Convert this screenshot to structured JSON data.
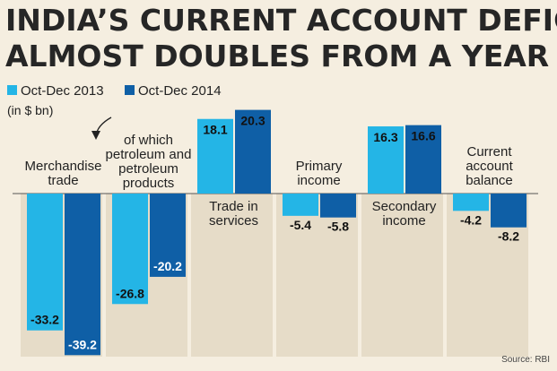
{
  "title_lines": [
    "INDIA’S CURRENT ACCOUNT DEFICIT",
    "ALMOST DOUBLES FROM A YEAR AGO"
  ],
  "unit": "(in $ bn)",
  "source": "Source: RBI",
  "colors": {
    "series_2013": "#24b5e6",
    "series_2014": "#0f5fa6",
    "background": "#f5eee0",
    "panel": "#e6dcc8"
  },
  "chart_data": {
    "type": "bar",
    "title": "INDIA’S CURRENT ACCOUNT DEFICIT ALMOST DOUBLES FROM A YEAR AGO",
    "ylabel": "(in $ bn)",
    "categories": [
      "Merchandise trade",
      "of which petroleum and petroleum products",
      "Trade in services",
      "Primary income",
      "Secondary income",
      "Current account balance"
    ],
    "category_label_lines": [
      [
        "Merchandise",
        "trade"
      ],
      [
        "of which",
        "petroleum and",
        "petroleum",
        "products"
      ],
      [
        "Trade in",
        "services"
      ],
      [
        "Primary",
        "income"
      ],
      [
        "Secondary",
        "income"
      ],
      [
        "Current",
        "account",
        "balance"
      ]
    ],
    "series": [
      {
        "name": "Oct-Dec 2013",
        "values": [
          -33.2,
          -26.8,
          18.1,
          -5.4,
          16.3,
          -4.2
        ],
        "labels": [
          "-33.2",
          "-26.8",
          "18.1",
          "-5.4",
          "16.3",
          "-4.2"
        ]
      },
      {
        "name": "Oct-Dec 2014",
        "values": [
          -39.2,
          -20.2,
          20.3,
          -5.8,
          16.6,
          -8.2
        ],
        "labels": [
          "-39.2",
          "-20.2",
          "20.3",
          "-5.8",
          "16.6",
          "-8.2"
        ]
      }
    ],
    "legend_position": "top-left",
    "grid": false
  }
}
